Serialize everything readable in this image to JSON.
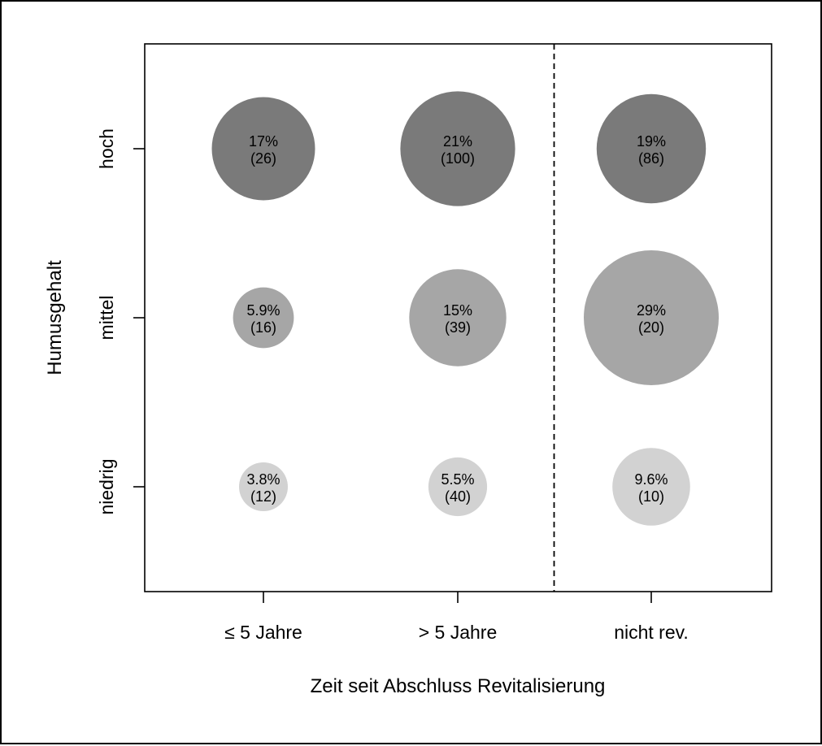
{
  "chart_data": {
    "type": "scatter",
    "subtype": "bubble",
    "xlabel": "Zeit seit Abschluss Revitalisierung",
    "ylabel": "Humusgehalt",
    "x_categories": [
      "≤ 5 Jahre",
      "> 5 Jahre",
      "nicht rev."
    ],
    "y_categories": [
      "niedrig",
      "mittel",
      "hoch"
    ],
    "grid": false,
    "separator": {
      "type": "dashed",
      "between": [
        "> 5 Jahre",
        "nicht rev."
      ]
    },
    "row_colors": {
      "hoch": "#7a7a7a",
      "mittel": "#a6a6a6",
      "niedrig": "#d2d2d2"
    },
    "points": [
      {
        "x": "≤ 5 Jahre",
        "y": "hoch",
        "percent": 17,
        "percent_label": "17%",
        "count_label": "(26)"
      },
      {
        "x": "> 5 Jahre",
        "y": "hoch",
        "percent": 21,
        "percent_label": "21%",
        "count_label": "(100)"
      },
      {
        "x": "nicht rev.",
        "y": "hoch",
        "percent": 19,
        "percent_label": "19%",
        "count_label": "(86)"
      },
      {
        "x": "≤ 5 Jahre",
        "y": "mittel",
        "percent": 5.9,
        "percent_label": "5.9%",
        "count_label": "(16)"
      },
      {
        "x": "> 5 Jahre",
        "y": "mittel",
        "percent": 15,
        "percent_label": "15%",
        "count_label": "(39)"
      },
      {
        "x": "nicht rev.",
        "y": "mittel",
        "percent": 29,
        "percent_label": "29%",
        "count_label": "(20)"
      },
      {
        "x": "≤ 5 Jahre",
        "y": "niedrig",
        "percent": 3.8,
        "percent_label": "3.8%",
        "count_label": "(12)"
      },
      {
        "x": "> 5 Jahre",
        "y": "niedrig",
        "percent": 5.5,
        "percent_label": "5.5%",
        "count_label": "(40)"
      },
      {
        "x": "nicht rev.",
        "y": "niedrig",
        "percent": 9.6,
        "percent_label": "9.6%",
        "count_label": "(10)"
      }
    ]
  }
}
